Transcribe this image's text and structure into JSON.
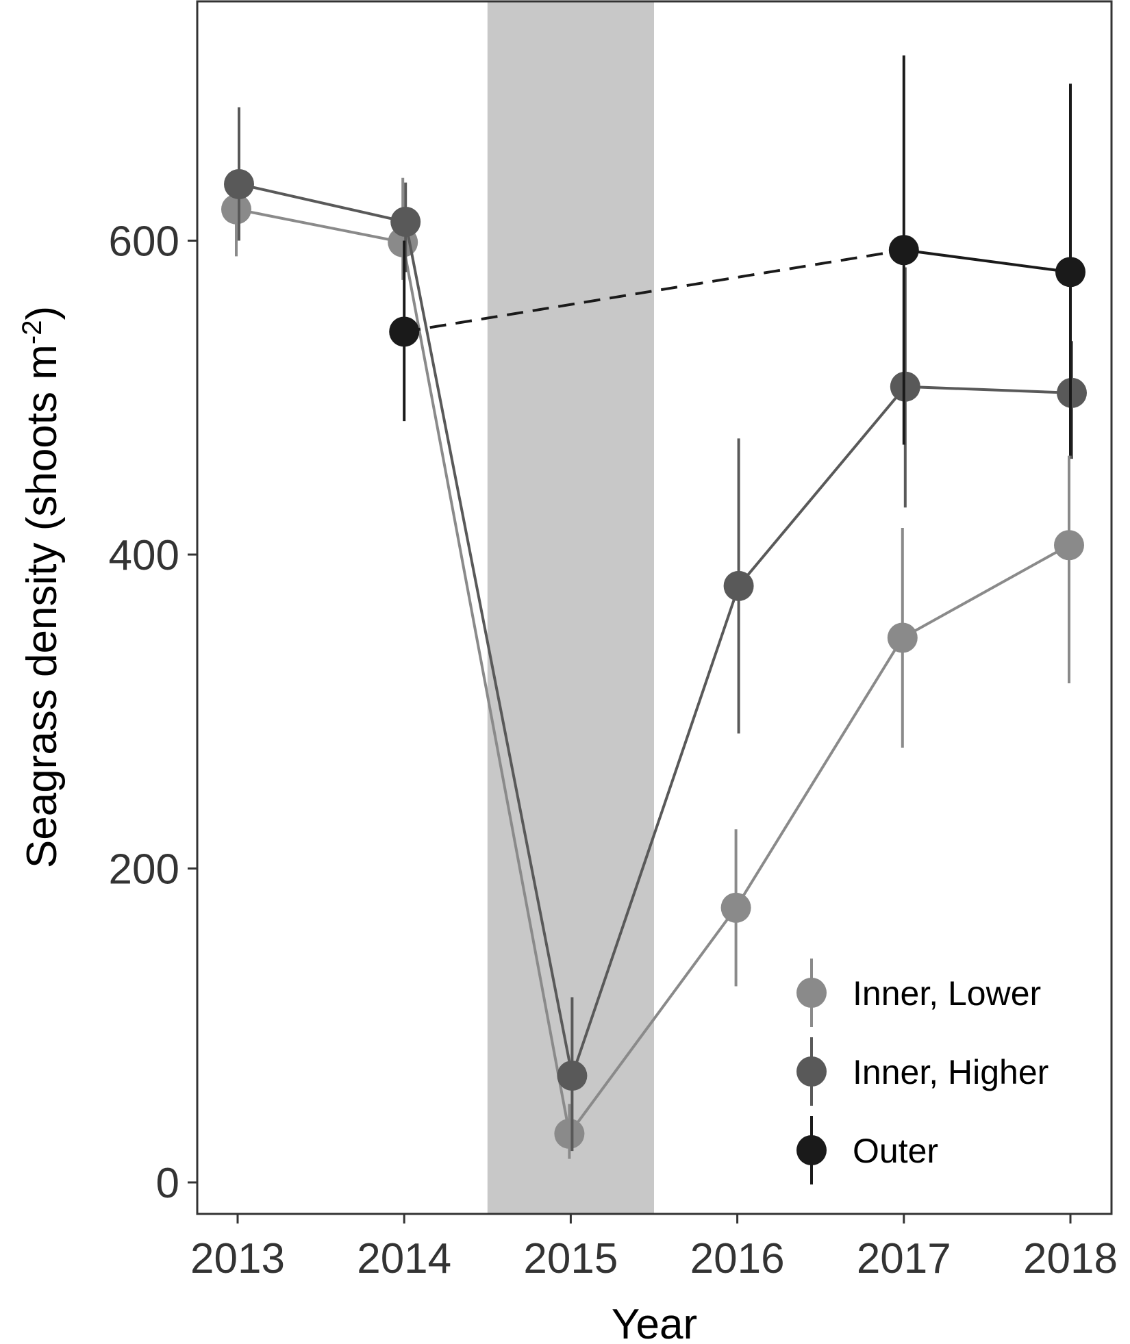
{
  "chart_data": {
    "type": "line",
    "title": "",
    "xlabel": "Year",
    "ylabel": "Seagrass density (shoots m",
    "ylabel_superscript": "-2",
    "ylabel_suffix": ")",
    "categories": [
      "2013",
      "2014",
      "2015",
      "2016",
      "2017",
      "2018"
    ],
    "yticks": [
      "0",
      "200",
      "400",
      "600"
    ],
    "ylim": [
      -20,
      770
    ],
    "grid": false,
    "shaded_period": {
      "from": 2014.5,
      "to": 2015.5,
      "color": "#c8c8c8"
    },
    "legend_position": "bottom-right",
    "series": [
      {
        "name": "Inner, Lower",
        "color": "#8a8a8a",
        "points": [
          {
            "x": 2013,
            "y": 620,
            "lo": 590,
            "hi": 640
          },
          {
            "x": 2014,
            "y": 599,
            "lo": 575,
            "hi": 640
          },
          {
            "x": 2015,
            "y": 31,
            "lo": 15,
            "hi": 50
          },
          {
            "x": 2016,
            "y": 175,
            "lo": 125,
            "hi": 225
          },
          {
            "x": 2017,
            "y": 347,
            "lo": 277,
            "hi": 417
          },
          {
            "x": 2018,
            "y": 406,
            "lo": 318,
            "hi": 463
          }
        ],
        "segments": [
          {
            "from": 0,
            "to": 5,
            "dashed": false
          }
        ]
      },
      {
        "name": "Inner, Higher",
        "color": "#595959",
        "points": [
          {
            "x": 2013,
            "y": 636,
            "lo": 600,
            "hi": 685
          },
          {
            "x": 2014,
            "y": 612,
            "lo": 580,
            "hi": 637
          },
          {
            "x": 2015,
            "y": 68,
            "lo": 20,
            "hi": 118
          },
          {
            "x": 2016,
            "y": 380,
            "lo": 286,
            "hi": 474
          },
          {
            "x": 2017,
            "y": 507,
            "lo": 430,
            "hi": 583
          },
          {
            "x": 2018,
            "y": 503,
            "lo": 461,
            "hi": 536
          }
        ],
        "segments": [
          {
            "from": 0,
            "to": 5,
            "dashed": false
          }
        ]
      },
      {
        "name": "Outer",
        "color": "#1a1a1a",
        "points": [
          {
            "x": 2014,
            "y": 542,
            "lo": 485,
            "hi": 600
          },
          {
            "x": 2017,
            "y": 594,
            "lo": 470,
            "hi": 718
          },
          {
            "x": 2018,
            "y": 580,
            "lo": 463,
            "hi": 700
          }
        ],
        "segments": [
          {
            "from": 0,
            "to": 1,
            "dashed": true
          },
          {
            "from": 1,
            "to": 2,
            "dashed": false
          }
        ]
      }
    ]
  }
}
